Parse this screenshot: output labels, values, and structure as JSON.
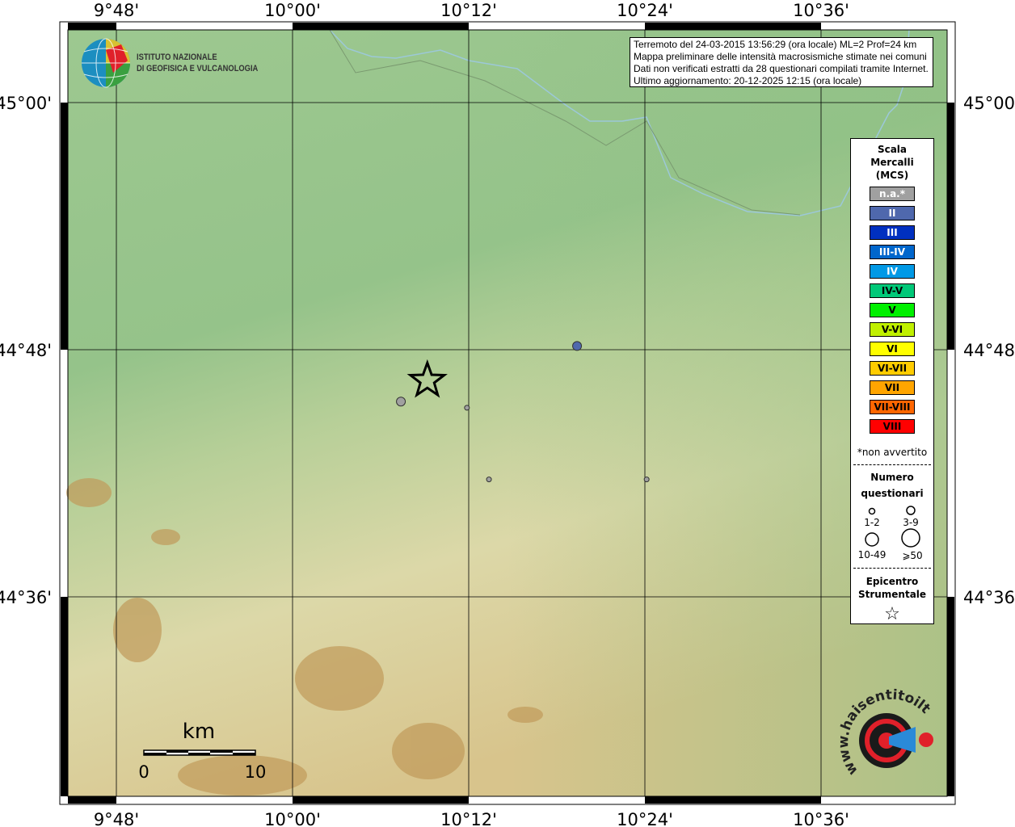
{
  "map": {
    "lon_labels": [
      "9°48'",
      "10°00'",
      "10°12'",
      "10°24'",
      "10°36'"
    ],
    "lat_labels": [
      "45°00'",
      "44°48'",
      "44°36'"
    ],
    "colors": {
      "terrain_low": "#9dc890",
      "terrain_high": "#c9a46a",
      "river": "#9cc8d8"
    }
  },
  "info": {
    "lines": [
      "Terremoto del 24-03-2015 13:56:29 (ora locale) ML=2 Prof=24 km",
      "Mappa preliminare delle intensità macrosismiche stimate nei comuni",
      "Dati non verificati estratti da 28 questionari compilati tramite Internet.",
      "Ultimo aggiornamento: 20-12-2025 12:15 (ora locale)"
    ]
  },
  "logo": {
    "line1": "ISTITUTO NAZIONALE",
    "line2": "DI GEOFISICA E VULCANOLOGIA"
  },
  "logo2": {
    "text": "www.haisentitoilterremoto.it"
  },
  "legend": {
    "title": [
      "Scala",
      "Mercalli",
      "(MCS)"
    ],
    "scale": [
      {
        "label": "n.a.*",
        "color": "#a0a0a0",
        "text": "#ffffff"
      },
      {
        "label": "II",
        "color": "#4f68ad",
        "text": "#ffffff"
      },
      {
        "label": "III",
        "color": "#0030c0",
        "text": "#ffffff"
      },
      {
        "label": "III-IV",
        "color": "#0066cc",
        "text": "#ffffff"
      },
      {
        "label": "IV",
        "color": "#0099e6",
        "text": "#ffffff"
      },
      {
        "label": "IV-V",
        "color": "#00c878",
        "text": "#000000"
      },
      {
        "label": "V",
        "color": "#00f000",
        "text": "#000000"
      },
      {
        "label": "V-VI",
        "color": "#c0f000",
        "text": "#000000"
      },
      {
        "label": "VI",
        "color": "#ffff00",
        "text": "#000000"
      },
      {
        "label": "VI-VII",
        "color": "#ffcc00",
        "text": "#000000"
      },
      {
        "label": "VII",
        "color": "#ffa500",
        "text": "#000000"
      },
      {
        "label": "VII-VIII",
        "color": "#ff6600",
        "text": "#000000"
      },
      {
        "label": "VIII",
        "color": "#ff0000",
        "text": "#000000"
      }
    ],
    "note": "*non avvertito",
    "count_title": [
      "Numero",
      "questionari"
    ],
    "counts": [
      "1-2",
      "3-9",
      "10-49",
      "⩾50"
    ],
    "epi_title": [
      "Epicentro",
      "Strumentale"
    ]
  },
  "scalebar": {
    "unit": "km",
    "min": "0",
    "max": "10"
  },
  "points": [
    {
      "intensity": "II",
      "lon": 10.323,
      "lat": 44.803,
      "size": "3-9",
      "color": "#4f68ad"
    },
    {
      "intensity": "n.a.*",
      "lon": 10.123,
      "lat": 44.758,
      "size": "3-9",
      "color": "#a0a0a0"
    },
    {
      "intensity": "n.a.*",
      "lon": 10.198,
      "lat": 44.753,
      "size": "1-2",
      "color": "#a0a0a0"
    },
    {
      "intensity": "n.a.*",
      "lon": 10.223,
      "lat": 44.695,
      "size": "1-2",
      "color": "#a0a0a0"
    },
    {
      "intensity": "n.a.*",
      "lon": 10.402,
      "lat": 44.695,
      "size": "1-2",
      "color": "#a0a0a0"
    }
  ],
  "epicenter": {
    "lon": 10.153,
    "lat": 44.775
  }
}
